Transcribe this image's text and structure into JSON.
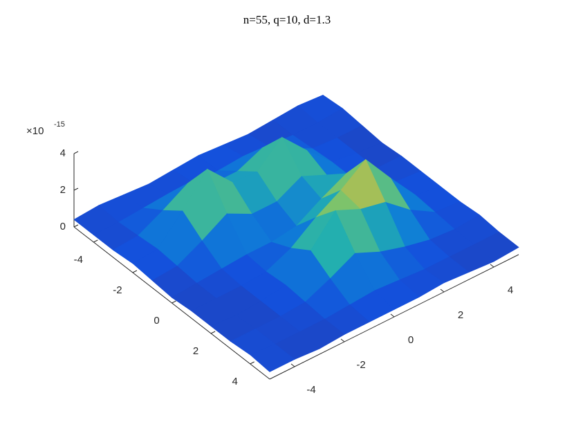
{
  "chart_data": {
    "type": "surface",
    "title": "n=55, q=10, d=1.3",
    "x": [
      -5,
      -4,
      -3,
      -2,
      -1,
      0,
      1,
      2,
      3,
      4,
      5
    ],
    "y": [
      -5,
      -4,
      -3,
      -2,
      -1,
      0,
      1,
      2,
      3,
      4,
      5
    ],
    "z": [
      [
        0.4,
        0.5,
        0.4,
        0.3,
        0.4,
        0.5,
        0.4,
        0.3,
        0.4,
        0.5,
        0.4
      ],
      [
        0.4,
        0.4,
        0.5,
        0.6,
        0.5,
        0.5,
        0.6,
        0.5,
        0.4,
        0.4,
        0.5
      ],
      [
        0.4,
        0.5,
        1.2,
        2.0,
        1.3,
        1.3,
        1.9,
        1.2,
        0.5,
        0.4,
        0.4
      ],
      [
        0.5,
        0.6,
        2.0,
        3.6,
        2.2,
        2.1,
        3.3,
        1.9,
        0.6,
        0.4,
        0.3
      ],
      [
        0.4,
        0.5,
        1.2,
        2.0,
        1.3,
        1.3,
        2.0,
        1.4,
        0.6,
        0.4,
        0.4
      ],
      [
        0.3,
        0.4,
        0.5,
        0.6,
        0.6,
        0.8,
        1.6,
        2.3,
        1.3,
        0.5,
        0.4
      ],
      [
        0.4,
        0.4,
        0.4,
        0.5,
        1.1,
        2.1,
        2.9,
        3.9,
        2.2,
        0.6,
        0.4
      ],
      [
        0.4,
        0.3,
        0.4,
        0.6,
        1.8,
        3.3,
        2.7,
        2.4,
        1.3,
        0.5,
        0.4
      ],
      [
        0.4,
        0.4,
        0.4,
        0.5,
        1.1,
        1.8,
        1.2,
        0.8,
        0.5,
        0.4,
        0.5
      ],
      [
        0.5,
        0.4,
        0.4,
        0.4,
        0.5,
        0.6,
        0.5,
        0.4,
        0.4,
        0.4,
        0.4
      ],
      [
        0.4,
        0.4,
        0.3,
        0.4,
        0.4,
        0.4,
        0.4,
        0.5,
        0.4,
        0.3,
        0.4
      ]
    ],
    "xlim": [
      -5,
      5
    ],
    "ylim": [
      -5,
      5
    ],
    "zlim": [
      0,
      4
    ],
    "xticks": [
      -4,
      -2,
      0,
      2,
      4
    ],
    "yticks": [
      -4,
      -2,
      0,
      2,
      4
    ],
    "zticks": [
      0,
      2,
      4
    ],
    "z_exponent_base": "×10",
    "z_exponent": "-15",
    "colormap": "parula"
  }
}
